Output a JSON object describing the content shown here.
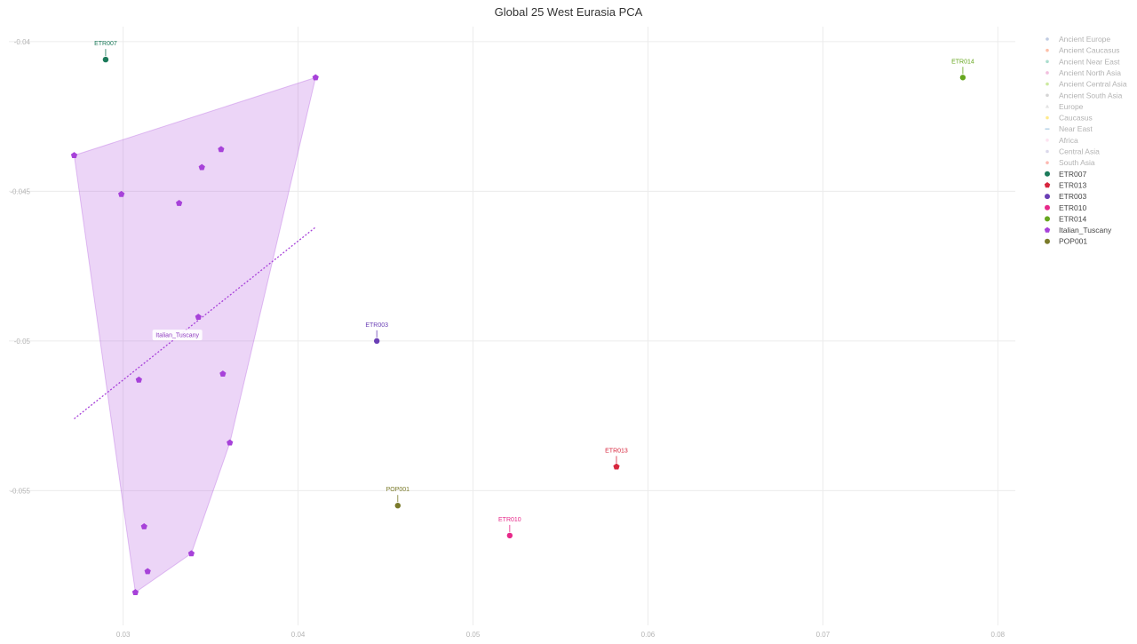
{
  "chart_data": {
    "type": "scatter",
    "title": "Global 25 West Eurasia PCA",
    "xlim": [
      0.0255,
      0.081
    ],
    "ylim": [
      -0.0595,
      -0.0395
    ],
    "x_ticks": [
      {
        "value": 0.03,
        "label": "0.03"
      },
      {
        "value": 0.04,
        "label": "0.04"
      },
      {
        "value": 0.05,
        "label": "0.05"
      },
      {
        "value": 0.06,
        "label": "0.06"
      },
      {
        "value": 0.07,
        "label": "0.07"
      },
      {
        "value": 0.08,
        "label": "0.08"
      }
    ],
    "y_ticks": [
      {
        "value": -0.04,
        "label": "-0.04"
      },
      {
        "value": -0.045,
        "label": "-0.045"
      },
      {
        "value": -0.05,
        "label": "-0.05"
      },
      {
        "value": -0.055,
        "label": "-0.055"
      }
    ],
    "grid": true,
    "legend_position": "right",
    "legend": [
      {
        "label": "Ancient Europe",
        "color": "#8da0cb",
        "marker": "circle",
        "faded": true
      },
      {
        "label": "Ancient Caucasus",
        "color": "#fc8d62",
        "marker": "circle",
        "faded": true
      },
      {
        "label": "Ancient Near East",
        "color": "#66c2a5",
        "marker": "circle",
        "faded": true
      },
      {
        "label": "Ancient North Asia",
        "color": "#e78ac3",
        "marker": "circle",
        "faded": true
      },
      {
        "label": "Ancient Central Asia",
        "color": "#a6d854",
        "marker": "circle",
        "faded": true
      },
      {
        "label": "Ancient South Asia",
        "color": "#b3b3b3",
        "marker": "circle",
        "faded": true
      },
      {
        "label": "Europe",
        "color": "#cccccc",
        "marker": "triangle",
        "faded": true
      },
      {
        "label": "Caucasus",
        "color": "#ffd92f",
        "marker": "circle",
        "faded": true
      },
      {
        "label": "Near East",
        "color": "#80b1d3",
        "marker": "dash",
        "faded": true
      },
      {
        "label": "Africa",
        "color": "#fccde5",
        "marker": "circle",
        "faded": true
      },
      {
        "label": "Central Asia",
        "color": "#bebada",
        "marker": "circle",
        "faded": true
      },
      {
        "label": "South Asia",
        "color": "#fb8072",
        "marker": "circle",
        "faded": true
      },
      {
        "label": "ETR007",
        "color": "#1b7a5a",
        "marker": "circle",
        "faded": false
      },
      {
        "label": "ETR013",
        "color": "#d7263d",
        "marker": "pentagon",
        "faded": false
      },
      {
        "label": "ETR003",
        "color": "#6a3fb5",
        "marker": "circle",
        "faded": false
      },
      {
        "label": "ETR010",
        "color": "#e7298a",
        "marker": "circle",
        "faded": false
      },
      {
        "label": "ETR014",
        "color": "#66a61e",
        "marker": "circle",
        "faded": false
      },
      {
        "label": "Italian_Tuscany",
        "color": "#a742d9",
        "marker": "pentagon",
        "faded": false
      },
      {
        "label": "POP001",
        "color": "#7a7a2a",
        "marker": "circle",
        "faded": false
      }
    ],
    "series": [
      {
        "name": "ETR007",
        "color": "#1b7a5a",
        "marker": "circle",
        "points": [
          {
            "x": 0.029,
            "y": -0.0406
          }
        ],
        "label_color": "#1b7a5a"
      },
      {
        "name": "ETR014",
        "color": "#66a61e",
        "marker": "circle",
        "points": [
          {
            "x": 0.078,
            "y": -0.0412
          }
        ],
        "label_color": "#66a61e"
      },
      {
        "name": "ETR003",
        "color": "#6a3fb5",
        "marker": "circle",
        "points": [
          {
            "x": 0.0445,
            "y": -0.05
          }
        ],
        "label_color": "#6a3fb5"
      },
      {
        "name": "ETR013",
        "color": "#d7263d",
        "marker": "pentagon",
        "points": [
          {
            "x": 0.0582,
            "y": -0.0542
          }
        ],
        "label_color": "#d7263d"
      },
      {
        "name": "POP001",
        "color": "#7a7a2a",
        "marker": "circle",
        "points": [
          {
            "x": 0.0457,
            "y": -0.0555
          }
        ],
        "label_color": "#7a7a2a"
      },
      {
        "name": "ETR010",
        "color": "#e7298a",
        "marker": "circle",
        "points": [
          {
            "x": 0.0521,
            "y": -0.0565
          }
        ],
        "label_color": "#e7298a"
      },
      {
        "name": "Italian_Tuscany",
        "color": "#a742d9",
        "marker": "pentagon",
        "label_color": "#8e3bbf",
        "label_at": {
          "x": 0.0331,
          "y": -0.0498
        },
        "hull": true,
        "trend_line": [
          {
            "x": 0.0272,
            "y": -0.0526
          },
          {
            "x": 0.041,
            "y": -0.0462
          }
        ],
        "points": [
          {
            "x": 0.041,
            "y": -0.0412
          },
          {
            "x": 0.0272,
            "y": -0.0438
          },
          {
            "x": 0.0356,
            "y": -0.0436
          },
          {
            "x": 0.0345,
            "y": -0.0442
          },
          {
            "x": 0.0299,
            "y": -0.0451
          },
          {
            "x": 0.0332,
            "y": -0.0454
          },
          {
            "x": 0.0343,
            "y": -0.0492
          },
          {
            "x": 0.0309,
            "y": -0.0513
          },
          {
            "x": 0.0357,
            "y": -0.0511
          },
          {
            "x": 0.0361,
            "y": -0.0534
          },
          {
            "x": 0.0312,
            "y": -0.0562
          },
          {
            "x": 0.0339,
            "y": -0.0571
          },
          {
            "x": 0.0314,
            "y": -0.0577
          },
          {
            "x": 0.0307,
            "y": -0.0584
          }
        ]
      }
    ]
  }
}
